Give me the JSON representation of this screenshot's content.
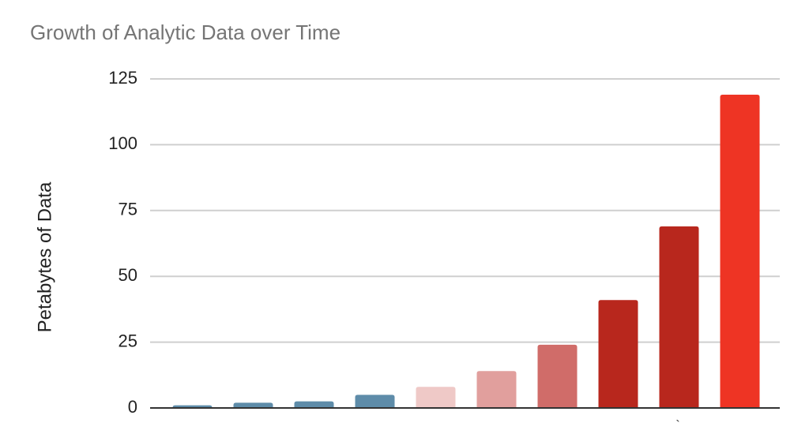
{
  "chart_data": {
    "type": "bar",
    "title": "Growth of Analytic Data over Time",
    "y_label": "Petabytes of Data",
    "annotation": "`",
    "categories": [
      null,
      null,
      null,
      null,
      null,
      null,
      null,
      null,
      null,
      null
    ],
    "values": [
      1,
      2,
      2.5,
      5,
      8,
      14,
      24,
      41,
      69,
      119
    ],
    "colors": [
      "#5e8ca9",
      "#5e8ca9",
      "#5e8ca9",
      "#5e8ca9",
      "#efc9c7",
      "#e19f9d",
      "#d06c69",
      "#b8271d",
      "#b8271d",
      "#ee3424"
    ],
    "ylim": [
      0,
      125
    ],
    "yticks": [
      0,
      25,
      50,
      75,
      100,
      125
    ],
    "grid": true
  }
}
